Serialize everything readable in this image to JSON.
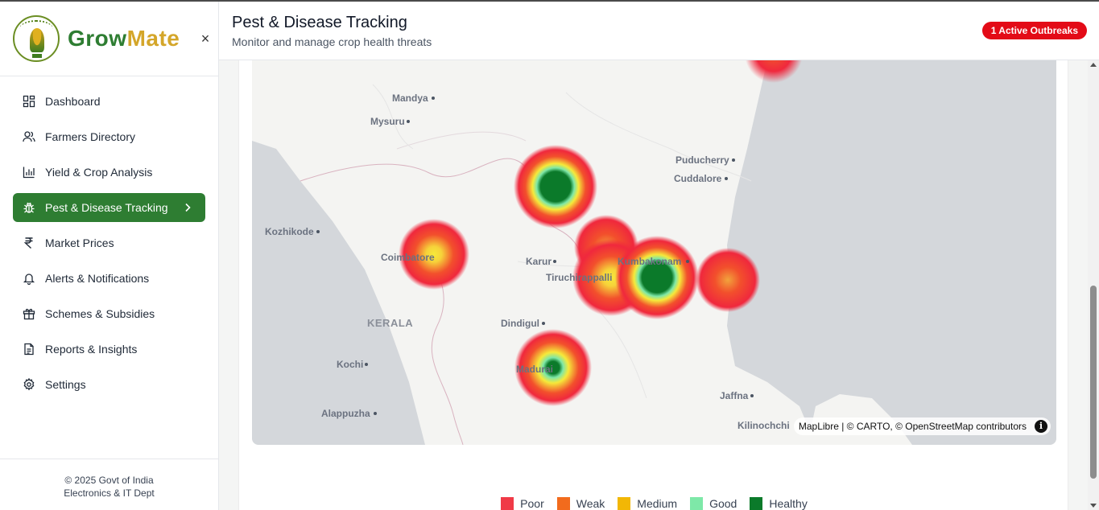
{
  "app": {
    "brand_part1": "Grow",
    "brand_part2": "Mate",
    "close_label": "×"
  },
  "sidebar": {
    "items": [
      {
        "label": "Dashboard",
        "icon": "dashboard-grid-icon"
      },
      {
        "label": "Farmers Directory",
        "icon": "users-icon"
      },
      {
        "label": "Yield & Crop Analysis",
        "icon": "bar-chart-icon"
      },
      {
        "label": "Pest & Disease Tracking",
        "icon": "bug-icon",
        "active": true
      },
      {
        "label": "Market Prices",
        "icon": "rupee-icon"
      },
      {
        "label": "Alerts & Notifications",
        "icon": "bell-icon"
      },
      {
        "label": "Schemes & Subsidies",
        "icon": "gift-icon"
      },
      {
        "label": "Reports & Insights",
        "icon": "document-icon"
      },
      {
        "label": "Settings",
        "icon": "gear-icon"
      }
    ],
    "footer_line1": "© 2025 Govt of India",
    "footer_line2": "Electronics & IT Dept"
  },
  "header": {
    "title": "Pest & Disease Tracking",
    "subtitle": "Monitor and manage crop health threats",
    "badge": "1 Active Outbreaks"
  },
  "map": {
    "places": {
      "mandya": "Mandya",
      "mysuru": "Mysuru",
      "puducherry": "Puducherry",
      "cuddalore": "Cuddalore",
      "kozhikode": "Kozhikode",
      "coimbatore": "Coimbatore",
      "karur": "Karur",
      "kumbakonam": "Kumbakonam",
      "tiruchirappalli": "Tiruchirappalli",
      "kerala": "KERALA",
      "dindigul": "Dindigul",
      "kochi": "Kochi",
      "madurai": "Madurai",
      "jaffna": "Jaffna",
      "alappuzha": "Alappuzha",
      "kilinochchi": "Kilinochchi"
    },
    "attribution": "MapLibre | © CARTO, © OpenStreetMap contributors",
    "info_label": "i"
  },
  "legend": [
    {
      "label": "Poor",
      "color": "#f03a47"
    },
    {
      "label": "Weak",
      "color": "#f26b1d"
    },
    {
      "label": "Medium",
      "color": "#f2b705"
    },
    {
      "label": "Good",
      "color": "#7ee8a8"
    },
    {
      "label": "Healthy",
      "color": "#0b7a2a"
    }
  ]
}
